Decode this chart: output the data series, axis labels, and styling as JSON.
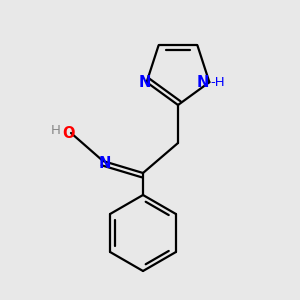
{
  "background_color": "#e8e8e8",
  "bond_color": "#000000",
  "atom_colors": {
    "N": "#0000ff",
    "O": "#ff0000",
    "C": "#000000",
    "H_gray": "#888888"
  },
  "figsize": [
    3.0,
    3.0
  ],
  "dpi": 100
}
